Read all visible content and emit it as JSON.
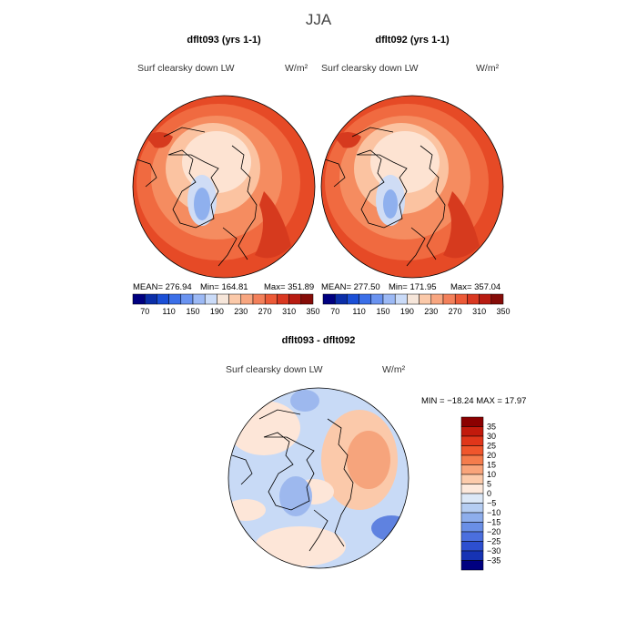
{
  "page": {
    "title": "JJA"
  },
  "panels": [
    {
      "title": "dflt093 (yrs 1-1)",
      "variable": "Surf clearsky down LW",
      "units": "W/m²",
      "stats": {
        "mean": "MEAN= 276.94",
        "min": "Min= 164.81",
        "max": "Max= 351.89"
      }
    },
    {
      "title": "dflt092 (yrs 1-1)",
      "variable": "Surf clearsky down LW",
      "units": "W/m²",
      "stats": {
        "mean": "MEAN= 277.50",
        "min": "Min= 171.95",
        "max": "Max= 357.04"
      }
    }
  ],
  "diff_panel": {
    "title": "dflt093 - dflt092",
    "variable": "Surf clearsky down LW",
    "units": "W/m²",
    "stats": "MIN = −18.24  MAX =  17.97"
  },
  "chart_data": [
    {
      "type": "heatmap",
      "projection": "north-polar-stereographic",
      "title": "dflt093 (yrs 1-1)",
      "field": "Surf clearsky down LW",
      "units": "W/m2",
      "mean": 276.94,
      "min": 164.81,
      "max": 351.89,
      "colorbar_ticks": [
        70,
        110,
        150,
        190,
        230,
        270,
        310,
        350
      ],
      "colorbar_colors": [
        "#000080",
        "#0b2ea8",
        "#1b4fd6",
        "#3b6fe8",
        "#6a93f0",
        "#9cb9f5",
        "#cadbf8",
        "#f6e6da",
        "#fbc9a9",
        "#f8a680",
        "#f3805a",
        "#ec5a37",
        "#d93821",
        "#b81c12",
        "#850c08"
      ]
    },
    {
      "type": "heatmap",
      "projection": "north-polar-stereographic",
      "title": "dflt092 (yrs 1-1)",
      "field": "Surf clearsky down LW",
      "units": "W/m2",
      "mean": 277.5,
      "min": 171.95,
      "max": 357.04,
      "colorbar_ticks": [
        70,
        110,
        150,
        190,
        230,
        270,
        310,
        350
      ],
      "colorbar_colors": [
        "#000080",
        "#0b2ea8",
        "#1b4fd6",
        "#3b6fe8",
        "#6a93f0",
        "#9cb9f5",
        "#cadbf8",
        "#f6e6da",
        "#fbc9a9",
        "#f8a680",
        "#f3805a",
        "#ec5a37",
        "#d93821",
        "#b81c12",
        "#850c08"
      ]
    },
    {
      "type": "heatmap",
      "projection": "north-polar-stereographic",
      "title": "dflt093 - dflt092",
      "field": "Surf clearsky down LW",
      "units": "W/m2",
      "min": -18.24,
      "max": 17.97,
      "colorbar_ticks": [
        "35",
        "30",
        "25",
        "20",
        "15",
        "10",
        "5",
        "0",
        "−5",
        "−10",
        "−15",
        "−20",
        "−25",
        "−30",
        "−35"
      ],
      "colorbar_colors": [
        "#8b0000",
        "#c21a0c",
        "#e0361a",
        "#f0562c",
        "#f57c4c",
        "#f9a47a",
        "#fccbab",
        "#fde9dc",
        "#dce8f7",
        "#b5cdf2",
        "#8eaeec",
        "#6a8fe6",
        "#4b6fde",
        "#2d4fd0",
        "#1633b4",
        "#000080"
      ]
    }
  ]
}
